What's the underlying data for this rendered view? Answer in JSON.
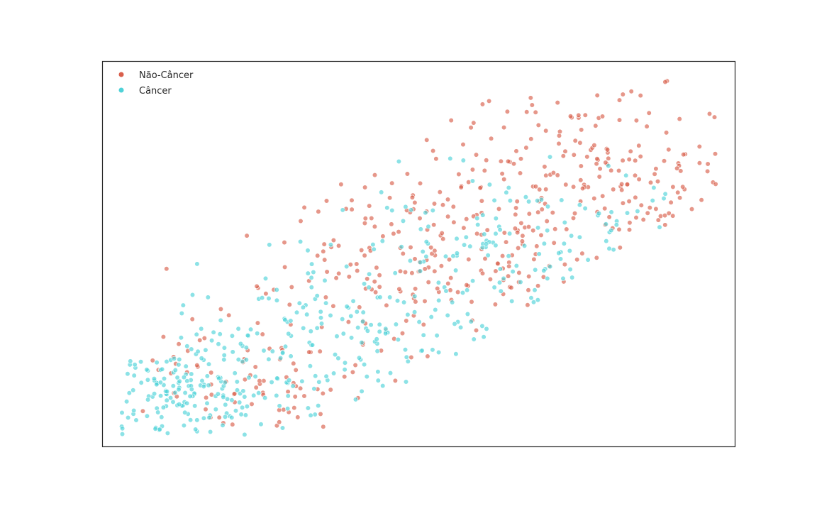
{
  "chart_data": {
    "type": "scatter",
    "title": "",
    "xlabel": "",
    "ylabel": "",
    "xlim": [
      0,
      100
    ],
    "ylim": [
      0,
      100
    ],
    "grid": false,
    "axis_ticks": false,
    "legend": {
      "placement": "top-left"
    },
    "marker_opacity": 0.65,
    "generation": {
      "seed": 20240611,
      "points_per_series": 470
    },
    "series": [
      {
        "name": "Não-Câncer",
        "color": "#d95f4c",
        "regions": [
          {
            "center": [
              78,
              72
            ],
            "spread": [
              13,
              11
            ],
            "weight": 0.4
          },
          {
            "center": [
              52,
              48
            ],
            "spread": [
              14,
              12
            ],
            "weight": 0.38
          },
          {
            "center": [
              28,
              20
            ],
            "spread": [
              12,
              9
            ],
            "weight": 0.22
          }
        ]
      },
      {
        "name": "Câncer",
        "color": "#4fd2d8",
        "regions": [
          {
            "center": [
              14,
              16
            ],
            "spread": [
              8,
              8
            ],
            "weight": 0.38
          },
          {
            "center": [
              40,
              30
            ],
            "spread": [
              12,
              10
            ],
            "weight": 0.32
          },
          {
            "center": [
              68,
              48
            ],
            "spread": [
              16,
              12
            ],
            "weight": 0.3
          }
        ]
      }
    ]
  }
}
